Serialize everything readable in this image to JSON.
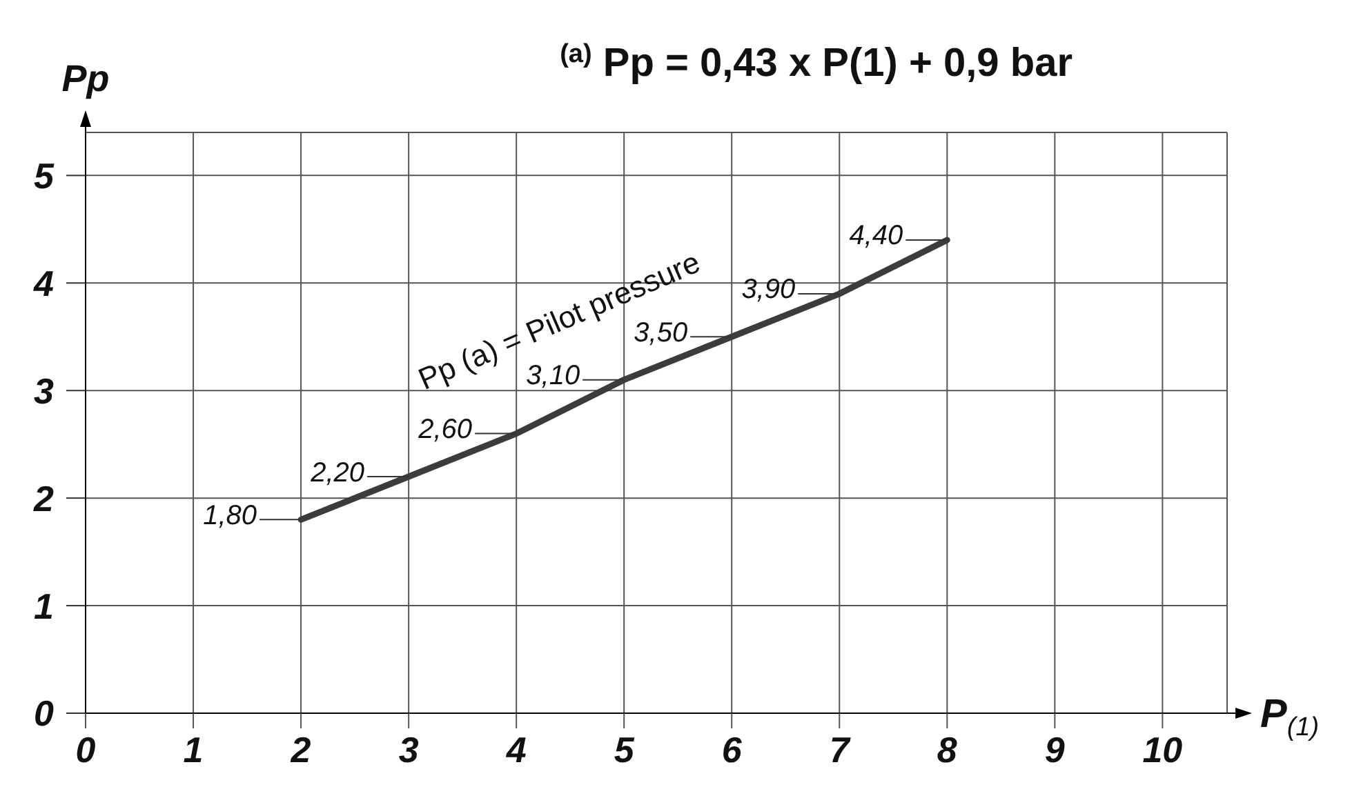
{
  "chart_data": {
    "type": "line",
    "title": "$^{(a)}$ Pp = 0,43 x P(1) + 0,9 bar",
    "xlabel": "P$_{(1)}$",
    "ylabel": "Pp",
    "x": [
      2,
      3,
      4,
      5,
      6,
      7,
      8
    ],
    "series": [
      {
        "color": "#3c3c3c",
        "values": [
          1.8,
          2.2,
          2.6,
          3.1,
          3.5,
          3.9,
          4.4
        ],
        "value_labels": [
          "1,80",
          "2,20",
          "2,60",
          "3,10",
          "3,50",
          "3,90",
          "4,40"
        ]
      }
    ],
    "xlim": [
      0,
      10.6
    ],
    "ylim": [
      0,
      5.4
    ],
    "xticks": [
      0,
      1,
      2,
      3,
      4,
      5,
      6,
      7,
      8,
      9,
      10
    ],
    "yticks": [
      0,
      1,
      2,
      3,
      4,
      5
    ],
    "grid": true,
    "marker": "none",
    "line_style": "solid",
    "annotations": [
      {
        "text": "Pp (a) = Pilot pressure",
        "x": 4.7,
        "y": 2.95
      }
    ]
  }
}
